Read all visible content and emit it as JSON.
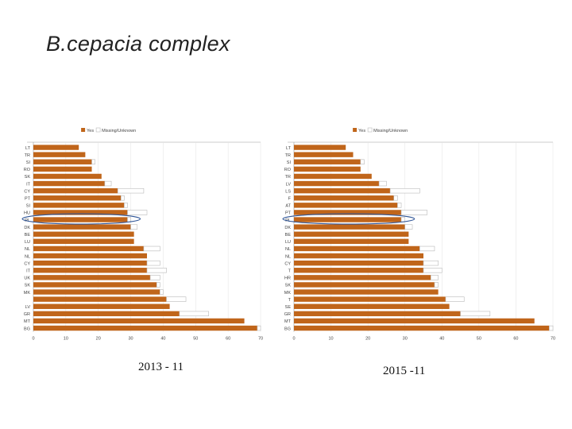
{
  "slide": {
    "title": "B.cepacia complex"
  },
  "colors": {
    "yes": "#c0651a",
    "missing": "#ffffff",
    "missing_border": "#b8b8b8",
    "highlight": "#2f5597"
  },
  "chart_data": [
    {
      "type": "bar",
      "orientation": "horizontal",
      "stacked": true,
      "caption": "2013 - 11",
      "legend": {
        "position": "top",
        "entries": [
          "Yes",
          "Missing/Unknown"
        ]
      },
      "categories": [
        "LT",
        "TR",
        "SI",
        "RO",
        "SK",
        "IT",
        "CY",
        "PT",
        "SI",
        "HU",
        "PL",
        "DK",
        "BE",
        "LU",
        "NL",
        "NL",
        "CY",
        "IT",
        "UK",
        "SK",
        "MK",
        "",
        "LV",
        "GR",
        "MT",
        "BG"
      ],
      "series": [
        {
          "name": "Yes",
          "values": [
            14,
            16,
            18,
            18,
            21,
            22,
            26,
            27,
            28,
            29,
            29,
            30,
            31,
            31,
            34,
            35,
            35,
            35,
            36,
            38,
            39,
            41,
            42,
            45,
            65,
            69
          ]
        },
        {
          "name": "Missing/Unknown",
          "values": [
            0,
            0,
            1,
            0,
            0,
            2,
            8,
            1,
            1,
            6,
            1,
            2,
            0,
            0,
            5,
            0,
            4,
            6,
            3,
            1,
            1,
            6,
            0,
            9,
            0,
            1
          ]
        }
      ],
      "xlim": [
        0,
        70
      ],
      "xticks": [
        "0",
        "10",
        "20",
        "30",
        "40",
        "50",
        "60",
        "70"
      ],
      "highlight_index": 10
    },
    {
      "type": "bar",
      "orientation": "horizontal",
      "stacked": true,
      "caption": "2015 -11",
      "legend": {
        "position": "top",
        "entries": [
          "Yes",
          "Missing/Unknown"
        ]
      },
      "categories": [
        "LT",
        "TR",
        "SI",
        "RO",
        "TR",
        "LV",
        "LS",
        "F",
        "AT",
        "PT",
        "PL",
        "DK",
        "BE",
        "LU",
        "NL",
        "NL",
        "CY",
        "T",
        "HR",
        "SK",
        "MK",
        "T",
        "SE",
        "GR",
        "MT",
        "BG"
      ],
      "series": [
        {
          "name": "Yes",
          "values": [
            14,
            16,
            18,
            18,
            21,
            23,
            26,
            27,
            28,
            29,
            29,
            30,
            31,
            31,
            34,
            35,
            35,
            35,
            37,
            38,
            39,
            41,
            42,
            45,
            65,
            69
          ]
        },
        {
          "name": "Missing/Unknown",
          "values": [
            0,
            0,
            1,
            0,
            0,
            2,
            8,
            1,
            1,
            7,
            1,
            2,
            0,
            0,
            4,
            0,
            4,
            5,
            2,
            1,
            0,
            5,
            0,
            8,
            0,
            1
          ]
        }
      ],
      "xlim": [
        0,
        70
      ],
      "xticks": [
        "0",
        "10",
        "20",
        "30",
        "40",
        "50",
        "60",
        "70"
      ],
      "highlight_index": 10
    }
  ]
}
